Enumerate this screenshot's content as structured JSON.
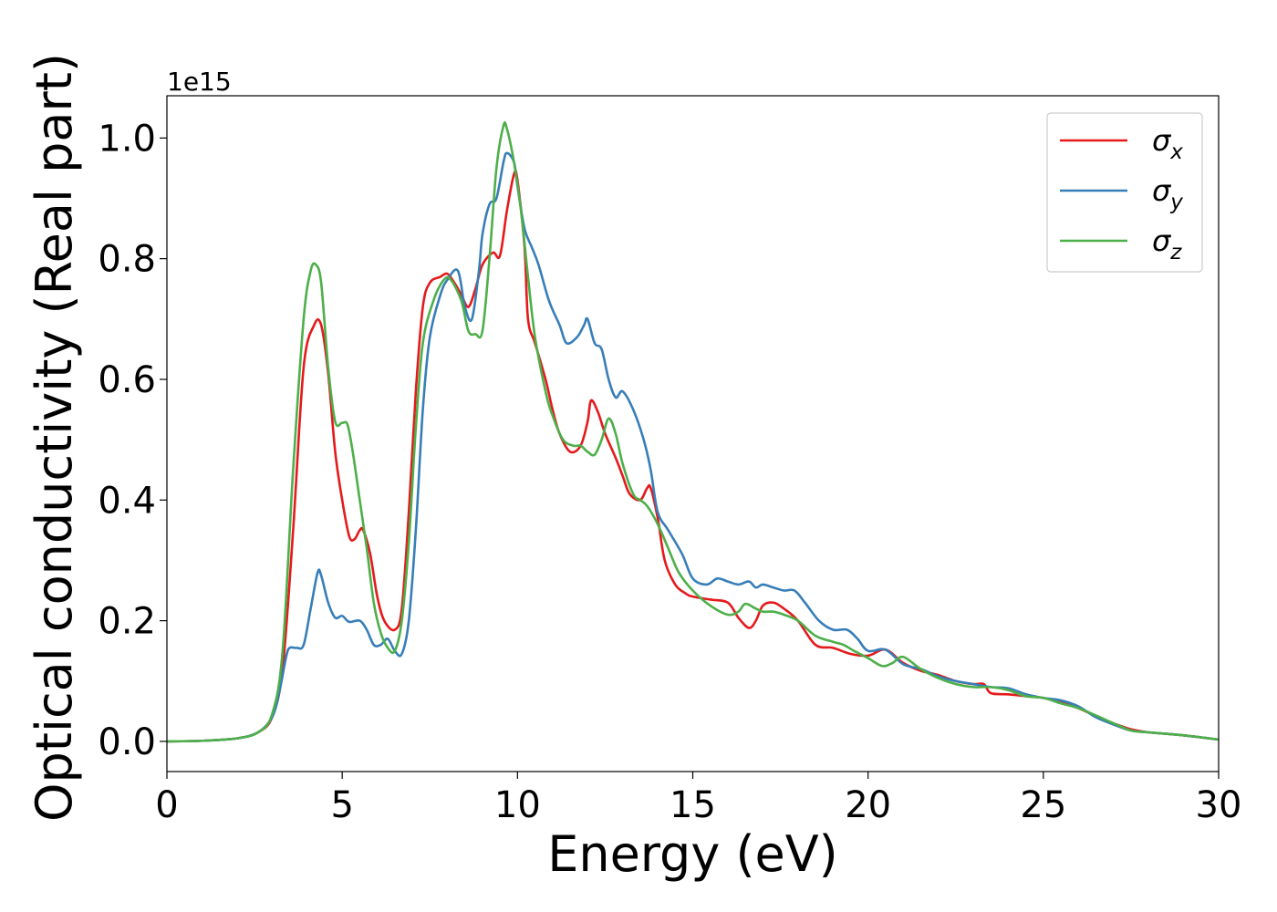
{
  "chart_data": {
    "type": "line",
    "xlabel": "Energy (eV)",
    "ylabel": "Optical conductivity (Real part)",
    "offset_text": "1e15",
    "xlim": [
      0,
      30
    ],
    "ylim": [
      -0.05,
      1.07
    ],
    "xticks": [
      0,
      5,
      10,
      15,
      20,
      25,
      30
    ],
    "yticks": [
      0.0,
      0.2,
      0.4,
      0.6,
      0.8,
      1.0
    ],
    "xtick_labels": [
      "0",
      "5",
      "10",
      "15",
      "20",
      "25",
      "30"
    ],
    "ytick_labels": [
      "0.0",
      "0.2",
      "0.4",
      "0.6",
      "0.8",
      "1.0"
    ],
    "grid": false,
    "legend_position": "top-right",
    "series": [
      {
        "name": "σx",
        "symbol": "σ",
        "subscript": "x",
        "color": "#e41a1c",
        "points": [
          [
            0,
            0
          ],
          [
            1,
            0.001
          ],
          [
            2,
            0.005
          ],
          [
            2.6,
            0.015
          ],
          [
            3.0,
            0.04
          ],
          [
            3.3,
            0.12
          ],
          [
            3.6,
            0.35
          ],
          [
            3.9,
            0.62
          ],
          [
            4.2,
            0.69
          ],
          [
            4.4,
            0.69
          ],
          [
            4.6,
            0.61
          ],
          [
            4.8,
            0.48
          ],
          [
            5.0,
            0.4
          ],
          [
            5.2,
            0.34
          ],
          [
            5.35,
            0.335
          ],
          [
            5.5,
            0.35
          ],
          [
            5.6,
            0.35
          ],
          [
            5.8,
            0.31
          ],
          [
            6.0,
            0.24
          ],
          [
            6.2,
            0.2
          ],
          [
            6.5,
            0.185
          ],
          [
            6.7,
            0.22
          ],
          [
            6.9,
            0.38
          ],
          [
            7.1,
            0.58
          ],
          [
            7.3,
            0.72
          ],
          [
            7.5,
            0.76
          ],
          [
            7.8,
            0.77
          ],
          [
            8.0,
            0.775
          ],
          [
            8.2,
            0.76
          ],
          [
            8.4,
            0.74
          ],
          [
            8.6,
            0.72
          ],
          [
            8.8,
            0.75
          ],
          [
            9.0,
            0.79
          ],
          [
            9.3,
            0.81
          ],
          [
            9.5,
            0.805
          ],
          [
            9.7,
            0.88
          ],
          [
            9.9,
            0.94
          ],
          [
            10.0,
            0.93
          ],
          [
            10.2,
            0.82
          ],
          [
            10.3,
            0.7
          ],
          [
            10.5,
            0.66
          ],
          [
            10.8,
            0.6
          ],
          [
            11.0,
            0.55
          ],
          [
            11.2,
            0.51
          ],
          [
            11.5,
            0.48
          ],
          [
            11.8,
            0.49
          ],
          [
            12.0,
            0.53
          ],
          [
            12.1,
            0.565
          ],
          [
            12.3,
            0.545
          ],
          [
            12.5,
            0.51
          ],
          [
            12.8,
            0.47
          ],
          [
            13.0,
            0.44
          ],
          [
            13.2,
            0.41
          ],
          [
            13.5,
            0.4
          ],
          [
            13.7,
            0.42
          ],
          [
            13.8,
            0.42
          ],
          [
            14.0,
            0.37
          ],
          [
            14.2,
            0.3
          ],
          [
            14.5,
            0.26
          ],
          [
            14.8,
            0.245
          ],
          [
            15.0,
            0.24
          ],
          [
            15.5,
            0.235
          ],
          [
            16.0,
            0.23
          ],
          [
            16.3,
            0.205
          ],
          [
            16.6,
            0.188
          ],
          [
            16.8,
            0.2
          ],
          [
            17.0,
            0.225
          ],
          [
            17.3,
            0.23
          ],
          [
            17.6,
            0.22
          ],
          [
            18.0,
            0.2
          ],
          [
            18.5,
            0.16
          ],
          [
            19.0,
            0.155
          ],
          [
            19.5,
            0.145
          ],
          [
            20.0,
            0.142
          ],
          [
            20.5,
            0.152
          ],
          [
            21.0,
            0.13
          ],
          [
            21.5,
            0.117
          ],
          [
            22.0,
            0.11
          ],
          [
            22.5,
            0.1
          ],
          [
            23.0,
            0.095
          ],
          [
            23.3,
            0.095
          ],
          [
            23.5,
            0.08
          ],
          [
            24.0,
            0.078
          ],
          [
            24.5,
            0.075
          ],
          [
            25.0,
            0.072
          ],
          [
            25.5,
            0.065
          ],
          [
            26.0,
            0.055
          ],
          [
            26.5,
            0.042
          ],
          [
            27.0,
            0.03
          ],
          [
            27.5,
            0.02
          ],
          [
            28.0,
            0.015
          ],
          [
            29.0,
            0.01
          ],
          [
            30.0,
            0.003
          ]
        ]
      },
      {
        "name": "σy",
        "symbol": "σ",
        "subscript": "y",
        "color": "#377eb8",
        "points": [
          [
            0,
            0
          ],
          [
            1,
            0.001
          ],
          [
            2,
            0.005
          ],
          [
            2.6,
            0.015
          ],
          [
            3.0,
            0.04
          ],
          [
            3.2,
            0.08
          ],
          [
            3.4,
            0.14
          ],
          [
            3.5,
            0.155
          ],
          [
            3.7,
            0.155
          ],
          [
            3.9,
            0.16
          ],
          [
            4.1,
            0.22
          ],
          [
            4.3,
            0.28
          ],
          [
            4.4,
            0.275
          ],
          [
            4.6,
            0.23
          ],
          [
            4.8,
            0.205
          ],
          [
            5.0,
            0.208
          ],
          [
            5.2,
            0.198
          ],
          [
            5.5,
            0.2
          ],
          [
            5.7,
            0.185
          ],
          [
            5.9,
            0.16
          ],
          [
            6.1,
            0.16
          ],
          [
            6.3,
            0.17
          ],
          [
            6.5,
            0.15
          ],
          [
            6.7,
            0.145
          ],
          [
            6.9,
            0.2
          ],
          [
            7.1,
            0.35
          ],
          [
            7.3,
            0.55
          ],
          [
            7.5,
            0.67
          ],
          [
            7.8,
            0.74
          ],
          [
            8.0,
            0.765
          ],
          [
            8.3,
            0.78
          ],
          [
            8.5,
            0.72
          ],
          [
            8.7,
            0.7
          ],
          [
            8.9,
            0.78
          ],
          [
            9.0,
            0.84
          ],
          [
            9.2,
            0.89
          ],
          [
            9.4,
            0.9
          ],
          [
            9.6,
            0.96
          ],
          [
            9.7,
            0.975
          ],
          [
            9.9,
            0.96
          ],
          [
            10.0,
            0.92
          ],
          [
            10.2,
            0.85
          ],
          [
            10.4,
            0.82
          ],
          [
            10.6,
            0.79
          ],
          [
            10.9,
            0.73
          ],
          [
            11.2,
            0.69
          ],
          [
            11.4,
            0.66
          ],
          [
            11.7,
            0.67
          ],
          [
            11.9,
            0.69
          ],
          [
            12.0,
            0.7
          ],
          [
            12.2,
            0.66
          ],
          [
            12.4,
            0.65
          ],
          [
            12.6,
            0.6
          ],
          [
            12.8,
            0.57
          ],
          [
            13.0,
            0.58
          ],
          [
            13.3,
            0.55
          ],
          [
            13.6,
            0.5
          ],
          [
            13.8,
            0.45
          ],
          [
            14.0,
            0.38
          ],
          [
            14.3,
            0.35
          ],
          [
            14.7,
            0.31
          ],
          [
            15.0,
            0.27
          ],
          [
            15.4,
            0.26
          ],
          [
            15.7,
            0.27
          ],
          [
            16.0,
            0.265
          ],
          [
            16.3,
            0.26
          ],
          [
            16.6,
            0.265
          ],
          [
            16.8,
            0.255
          ],
          [
            17.0,
            0.26
          ],
          [
            17.3,
            0.255
          ],
          [
            17.6,
            0.25
          ],
          [
            17.9,
            0.25
          ],
          [
            18.2,
            0.23
          ],
          [
            18.6,
            0.2
          ],
          [
            19.0,
            0.185
          ],
          [
            19.4,
            0.185
          ],
          [
            19.7,
            0.17
          ],
          [
            20.0,
            0.15
          ],
          [
            20.5,
            0.152
          ],
          [
            21.0,
            0.128
          ],
          [
            21.5,
            0.12
          ],
          [
            22.0,
            0.108
          ],
          [
            22.5,
            0.1
          ],
          [
            23.0,
            0.095
          ],
          [
            23.5,
            0.09
          ],
          [
            24.0,
            0.088
          ],
          [
            24.5,
            0.078
          ],
          [
            25.0,
            0.072
          ],
          [
            25.5,
            0.068
          ],
          [
            26.0,
            0.058
          ],
          [
            26.5,
            0.04
          ],
          [
            27.0,
            0.028
          ],
          [
            27.5,
            0.018
          ],
          [
            28.0,
            0.015
          ],
          [
            29.0,
            0.01
          ],
          [
            30.0,
            0.003
          ]
        ]
      },
      {
        "name": "σz",
        "symbol": "σ",
        "subscript": "z",
        "color": "#4daf4a",
        "points": [
          [
            0,
            0
          ],
          [
            1,
            0.001
          ],
          [
            2,
            0.005
          ],
          [
            2.6,
            0.015
          ],
          [
            3.0,
            0.045
          ],
          [
            3.3,
            0.15
          ],
          [
            3.6,
            0.45
          ],
          [
            3.9,
            0.7
          ],
          [
            4.1,
            0.78
          ],
          [
            4.25,
            0.79
          ],
          [
            4.4,
            0.76
          ],
          [
            4.6,
            0.62
          ],
          [
            4.8,
            0.53
          ],
          [
            5.0,
            0.528
          ],
          [
            5.15,
            0.525
          ],
          [
            5.3,
            0.48
          ],
          [
            5.5,
            0.4
          ],
          [
            5.7,
            0.32
          ],
          [
            5.9,
            0.23
          ],
          [
            6.1,
            0.18
          ],
          [
            6.3,
            0.155
          ],
          [
            6.5,
            0.15
          ],
          [
            6.7,
            0.2
          ],
          [
            6.9,
            0.33
          ],
          [
            7.1,
            0.52
          ],
          [
            7.3,
            0.66
          ],
          [
            7.6,
            0.73
          ],
          [
            7.9,
            0.765
          ],
          [
            8.1,
            0.765
          ],
          [
            8.4,
            0.73
          ],
          [
            8.6,
            0.68
          ],
          [
            8.8,
            0.675
          ],
          [
            9.0,
            0.68
          ],
          [
            9.2,
            0.8
          ],
          [
            9.4,
            0.95
          ],
          [
            9.6,
            1.02
          ],
          [
            9.7,
            1.015
          ],
          [
            9.9,
            0.96
          ],
          [
            10.1,
            0.88
          ],
          [
            10.3,
            0.77
          ],
          [
            10.5,
            0.67
          ],
          [
            10.8,
            0.58
          ],
          [
            11.0,
            0.54
          ],
          [
            11.3,
            0.5
          ],
          [
            11.6,
            0.49
          ],
          [
            11.8,
            0.49
          ],
          [
            12.0,
            0.48
          ],
          [
            12.2,
            0.475
          ],
          [
            12.4,
            0.5
          ],
          [
            12.6,
            0.535
          ],
          [
            12.8,
            0.51
          ],
          [
            13.0,
            0.46
          ],
          [
            13.3,
            0.41
          ],
          [
            13.5,
            0.4
          ],
          [
            13.7,
            0.39
          ],
          [
            14.0,
            0.36
          ],
          [
            14.3,
            0.32
          ],
          [
            14.6,
            0.28
          ],
          [
            15.0,
            0.25
          ],
          [
            15.5,
            0.225
          ],
          [
            16.0,
            0.21
          ],
          [
            16.3,
            0.215
          ],
          [
            16.5,
            0.228
          ],
          [
            16.8,
            0.22
          ],
          [
            17.0,
            0.215
          ],
          [
            17.3,
            0.215
          ],
          [
            17.6,
            0.21
          ],
          [
            18.0,
            0.2
          ],
          [
            18.5,
            0.175
          ],
          [
            19.0,
            0.165
          ],
          [
            19.3,
            0.16
          ],
          [
            19.6,
            0.15
          ],
          [
            20.0,
            0.138
          ],
          [
            20.4,
            0.125
          ],
          [
            20.7,
            0.13
          ],
          [
            21.0,
            0.14
          ],
          [
            21.5,
            0.12
          ],
          [
            22.0,
            0.105
          ],
          [
            22.5,
            0.095
          ],
          [
            23.0,
            0.09
          ],
          [
            23.5,
            0.09
          ],
          [
            24.0,
            0.085
          ],
          [
            24.5,
            0.075
          ],
          [
            25.0,
            0.072
          ],
          [
            25.5,
            0.063
          ],
          [
            26.0,
            0.055
          ],
          [
            26.5,
            0.043
          ],
          [
            27.0,
            0.03
          ],
          [
            27.5,
            0.018
          ],
          [
            28.0,
            0.015
          ],
          [
            29.0,
            0.01
          ],
          [
            30.0,
            0.003
          ]
        ]
      }
    ]
  }
}
